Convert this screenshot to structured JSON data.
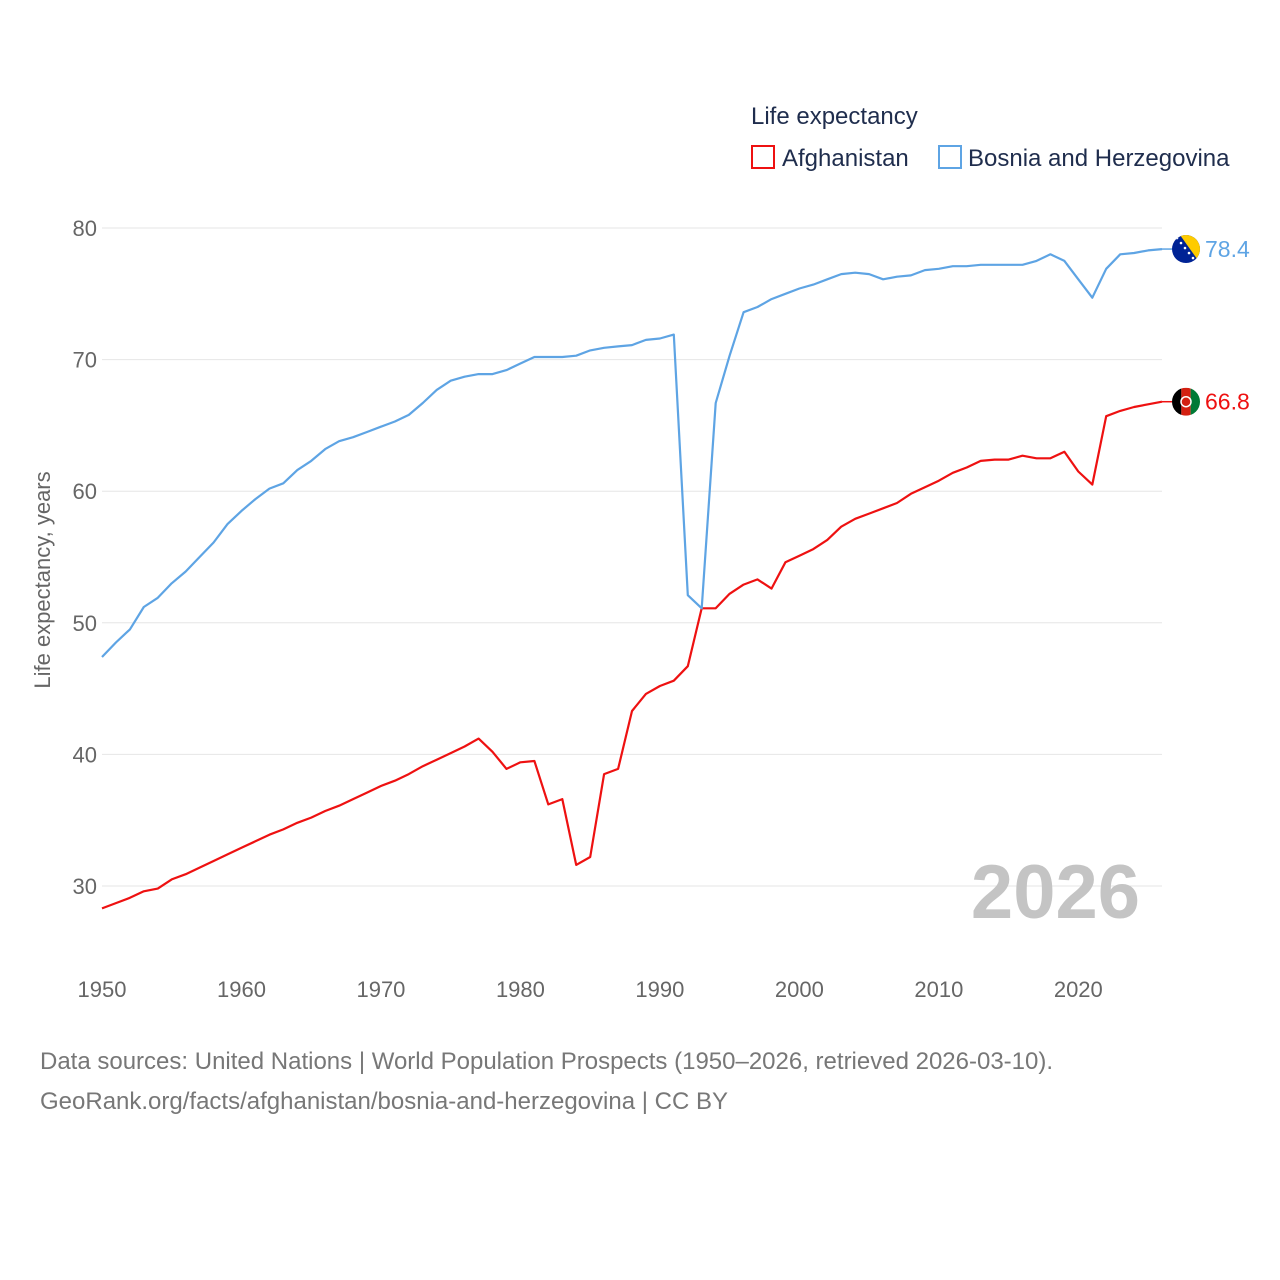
{
  "chart_data": {
    "type": "line",
    "title": "",
    "ylabel": "Life expectancy, years",
    "xlabel": "",
    "xlim": [
      1950,
      2026
    ],
    "ylim": [
      25,
      82
    ],
    "x_ticks": [
      1950,
      1960,
      1970,
      1980,
      1990,
      2000,
      2010,
      2020
    ],
    "y_ticks": [
      30,
      40,
      50,
      60,
      70,
      80
    ],
    "grid": true,
    "legend_title": "Life expectancy",
    "legend_position": "top-right",
    "year_marker": "2026",
    "x": [
      1950,
      1951,
      1952,
      1953,
      1954,
      1955,
      1956,
      1957,
      1958,
      1959,
      1960,
      1961,
      1962,
      1963,
      1964,
      1965,
      1966,
      1967,
      1968,
      1969,
      1970,
      1971,
      1972,
      1973,
      1974,
      1975,
      1976,
      1977,
      1978,
      1979,
      1980,
      1981,
      1982,
      1983,
      1984,
      1985,
      1986,
      1987,
      1988,
      1989,
      1990,
      1991,
      1992,
      1993,
      1994,
      1995,
      1996,
      1997,
      1998,
      1999,
      2000,
      2001,
      2002,
      2003,
      2004,
      2005,
      2006,
      2007,
      2008,
      2009,
      2010,
      2011,
      2012,
      2013,
      2014,
      2015,
      2016,
      2017,
      2018,
      2019,
      2020,
      2021,
      2022,
      2023,
      2024,
      2025,
      2026
    ],
    "series": [
      {
        "name": "Afghanistan",
        "color": "#ee1111",
        "end_label": "66.8",
        "flag": "afghanistan-flag-icon",
        "values": [
          28.3,
          28.7,
          29.1,
          29.6,
          29.8,
          30.5,
          30.9,
          31.4,
          31.9,
          32.4,
          32.9,
          33.4,
          33.9,
          34.3,
          34.8,
          35.2,
          35.7,
          36.1,
          36.6,
          37.1,
          37.6,
          38.0,
          38.5,
          39.1,
          39.6,
          40.1,
          40.6,
          41.2,
          40.2,
          38.9,
          39.4,
          39.5,
          36.2,
          36.6,
          31.6,
          32.2,
          38.5,
          38.9,
          43.3,
          44.6,
          45.2,
          45.6,
          46.7,
          51.1,
          51.1,
          52.2,
          52.9,
          53.3,
          52.6,
          54.6,
          55.1,
          55.6,
          56.3,
          57.3,
          57.9,
          58.3,
          58.7,
          59.1,
          59.8,
          60.3,
          60.8,
          61.4,
          61.8,
          62.3,
          62.4,
          62.4,
          62.7,
          62.5,
          62.5,
          63.0,
          61.5,
          60.5,
          65.7,
          66.1,
          66.4,
          66.6,
          66.8
        ]
      },
      {
        "name": "Bosnia and Herzegovina",
        "color": "#5ea4e4",
        "end_label": "78.4",
        "flag": "bosnia-flag-icon",
        "values": [
          47.4,
          48.5,
          49.5,
          51.2,
          51.9,
          53.0,
          53.9,
          55.0,
          56.1,
          57.5,
          58.5,
          59.4,
          60.2,
          60.6,
          61.6,
          62.3,
          63.2,
          63.8,
          64.1,
          64.5,
          64.9,
          65.3,
          65.8,
          66.7,
          67.7,
          68.4,
          68.7,
          68.9,
          68.9,
          69.2,
          69.7,
          70.2,
          70.2,
          70.2,
          70.3,
          70.7,
          70.9,
          71.0,
          71.1,
          71.5,
          71.6,
          71.9,
          52.1,
          51.1,
          66.7,
          70.3,
          73.6,
          74.0,
          74.6,
          75.0,
          75.4,
          75.7,
          76.1,
          76.5,
          76.6,
          76.5,
          76.1,
          76.3,
          76.4,
          76.8,
          76.9,
          77.1,
          77.1,
          77.2,
          77.2,
          77.2,
          77.2,
          77.5,
          78.0,
          77.5,
          76.1,
          74.7,
          76.9,
          78.0,
          78.1,
          78.3,
          78.4
        ]
      }
    ]
  },
  "footer": {
    "source_line": "Data sources: United Nations | World Population Prospects (1950–2026, retrieved 2026-03-10).",
    "attribution_line": "GeoRank.org/facts/afghanistan/bosnia-and-herzegovina | CC BY"
  }
}
